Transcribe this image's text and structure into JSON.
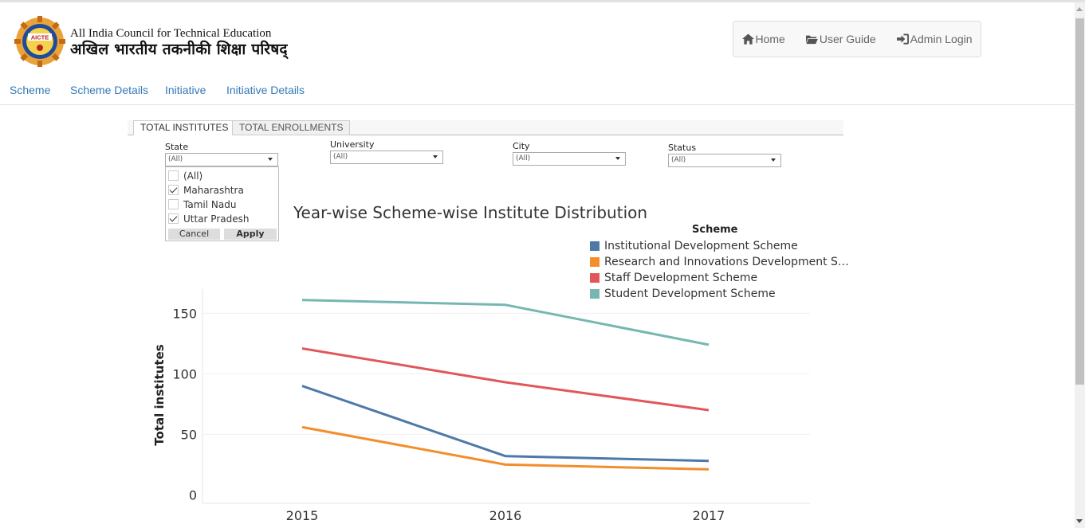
{
  "header": {
    "logo_text": "AICTE",
    "org_name_en": "All India Council for Technical Education",
    "org_name_hi": "अखिल भारतीय तकनीकी शिक्षा परिषद्",
    "nav": [
      {
        "label": "Home",
        "icon": "home-icon"
      },
      {
        "label": "User Guide",
        "icon": "folder-open-icon"
      },
      {
        "label": "Admin Login",
        "icon": "sign-in-icon"
      }
    ]
  },
  "menu": [
    "Scheme",
    "Scheme Details",
    "Initiative",
    "Initiative Details"
  ],
  "tabs": [
    {
      "label": "TOTAL INSTITUTES",
      "active": true
    },
    {
      "label": "TOTAL ENROLLMENTS",
      "active": false
    }
  ],
  "filters": {
    "state": {
      "label": "State",
      "value": "(All)"
    },
    "university": {
      "label": "University",
      "value": "(All)"
    },
    "city": {
      "label": "City",
      "value": "(All)"
    },
    "status": {
      "label": "Status",
      "value": "(All)"
    }
  },
  "state_dropdown": {
    "options": [
      {
        "label": "(All)",
        "checked": false
      },
      {
        "label": "Maharashtra",
        "checked": true
      },
      {
        "label": "Tamil Nadu",
        "checked": false
      },
      {
        "label": "Uttar Pradesh",
        "checked": true
      }
    ],
    "cancel_label": "Cancel",
    "apply_label": "Apply"
  },
  "chart_data": {
    "type": "line",
    "title": "Year-wise Scheme-wise Institute Distribution",
    "xlabel": "",
    "ylabel": "Total institutes",
    "x": [
      "2015",
      "2016",
      "2017"
    ],
    "yticks": [
      0,
      50,
      100,
      150
    ],
    "ylim": [
      -7,
      170
    ],
    "grid": true,
    "legend_title": "Scheme",
    "legend_position": "top-right",
    "series": [
      {
        "name": "Institutional Development Scheme",
        "display_name": "Institutional Development Scheme",
        "color": "#4e79a7",
        "values": [
          90,
          32,
          28
        ]
      },
      {
        "name": "Research and Innovations Development Scheme",
        "display_name": "Research and Innovations Development S…",
        "color": "#f28e2b",
        "values": [
          56,
          25,
          21
        ]
      },
      {
        "name": "Staff Development Scheme",
        "display_name": "Staff Development Scheme",
        "color": "#e15759",
        "values": [
          121,
          93,
          70
        ]
      },
      {
        "name": "Student Development Scheme",
        "display_name": "Student Development Scheme",
        "color": "#76b7b2",
        "values": [
          161,
          157,
          124
        ]
      }
    ]
  }
}
